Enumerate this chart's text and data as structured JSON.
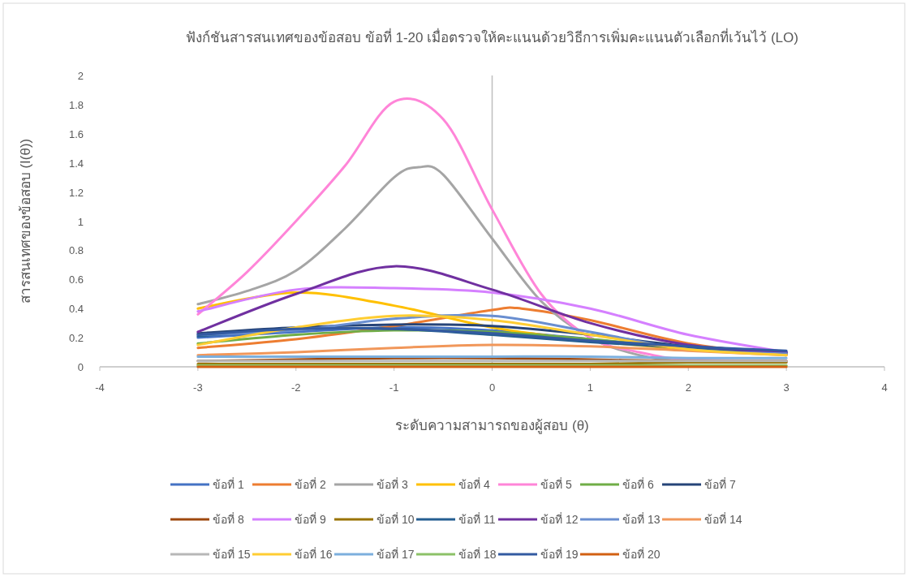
{
  "chart_data": {
    "type": "line",
    "title": "ฟังก์ชันสารสนเทศของข้อสอบ ข้อที่ 1-20 เมื่อตรวจให้คะแนนด้วยวิธีการเพิ่มคะแนนตัวเลือกที่เว้นไว้ (LO)",
    "xlabel": "ระดับความสามารถของผู้สอบ (θ)",
    "ylabel": "สารสนเทศของข้อสอบ (I(θ))",
    "x": [
      -3,
      -2,
      -1,
      0,
      1,
      2,
      3
    ],
    "xlim": [
      -4,
      4
    ],
    "xticks": [
      -4,
      -3,
      -2,
      -1,
      0,
      1,
      2,
      3,
      4
    ],
    "ylim": [
      0,
      2
    ],
    "yticks": [
      0,
      0.2,
      0.4,
      0.6,
      0.8,
      1,
      1.2,
      1.4,
      1.6,
      1.8,
      2
    ],
    "grid": false,
    "legend": "bottom",
    "marker": "none",
    "line_style": "solid",
    "ref_lines": [
      {
        "axis": "x",
        "value": 0,
        "color": "#bfbfbf"
      }
    ],
    "series": [
      {
        "name": "ข้อที่ 1",
        "color": "#4472c4",
        "values": [
          0.2,
          0.24,
          0.27,
          0.25,
          0.19,
          0.12,
          0.09
        ]
      },
      {
        "name": "ข้อที่ 2",
        "color": "#ed7d31",
        "x": [
          -3,
          -2,
          -1,
          0,
          0.3,
          1,
          2,
          3
        ],
        "values": [
          0.13,
          0.19,
          0.28,
          0.39,
          0.4,
          0.32,
          0.16,
          0.08
        ]
      },
      {
        "name": "ข้อที่ 3",
        "color": "#a5a5a5",
        "x": [
          -3,
          -2.5,
          -2,
          -1.5,
          -1,
          -0.75,
          -0.5,
          0,
          0.5,
          1,
          1.5,
          2,
          3
        ],
        "values": [
          0.43,
          0.52,
          0.66,
          0.95,
          1.3,
          1.37,
          1.32,
          0.88,
          0.45,
          0.2,
          0.08,
          0.04,
          0.03
        ]
      },
      {
        "name": "ข้อที่ 4",
        "color": "#ffc000",
        "values": [
          0.4,
          0.51,
          0.42,
          0.27,
          0.18,
          0.12,
          0.09
        ]
      },
      {
        "name": "ข้อที่ 5",
        "color": "#ff85d8",
        "x": [
          -3,
          -2.5,
          -2,
          -1.5,
          -1,
          -0.5,
          0,
          0.5,
          1,
          1.5,
          2,
          3
        ],
        "values": [
          0.36,
          0.65,
          1.0,
          1.38,
          1.82,
          1.7,
          1.08,
          0.5,
          0.2,
          0.1,
          0.05,
          0.04
        ]
      },
      {
        "name": "ข้อที่ 6",
        "color": "#70ad47",
        "values": [
          0.16,
          0.22,
          0.25,
          0.24,
          0.19,
          0.13,
          0.09
        ]
      },
      {
        "name": "ข้อที่ 7",
        "color": "#264478",
        "values": [
          0.23,
          0.27,
          0.29,
          0.28,
          0.22,
          0.14,
          0.1
        ]
      },
      {
        "name": "ข้อที่ 8",
        "color": "#9e480e",
        "values": [
          0.04,
          0.05,
          0.06,
          0.06,
          0.05,
          0.04,
          0.04
        ]
      },
      {
        "name": "ข้อที่ 9",
        "color": "#d580ff",
        "values": [
          0.38,
          0.53,
          0.54,
          0.51,
          0.4,
          0.22,
          0.1
        ]
      },
      {
        "name": "ข้อที่ 10",
        "color": "#997300",
        "values": [
          0.02,
          0.02,
          0.02,
          0.02,
          0.02,
          0.03,
          0.03
        ]
      },
      {
        "name": "ข้อที่ 11",
        "color": "#255e91",
        "values": [
          0.21,
          0.26,
          0.26,
          0.22,
          0.17,
          0.13,
          0.1
        ]
      },
      {
        "name": "ข้อที่ 12",
        "color": "#7030a0",
        "values": [
          0.24,
          0.5,
          0.69,
          0.53,
          0.3,
          0.15,
          0.1
        ]
      },
      {
        "name": "ข้อที่ 13",
        "color": "#698ed0",
        "values": [
          0.22,
          0.25,
          0.33,
          0.35,
          0.24,
          0.12,
          0.09
        ]
      },
      {
        "name": "ข้อที่ 14",
        "color": "#f1975a",
        "values": [
          0.08,
          0.1,
          0.13,
          0.15,
          0.14,
          0.11,
          0.08
        ]
      },
      {
        "name": "ข้อที่ 15",
        "color": "#b7b7b7",
        "values": [
          0.04,
          0.04,
          0.04,
          0.04,
          0.04,
          0.04,
          0.04
        ]
      },
      {
        "name": "ข้อที่ 16",
        "color": "#ffcd33",
        "values": [
          0.15,
          0.27,
          0.35,
          0.32,
          0.22,
          0.12,
          0.08
        ]
      },
      {
        "name": "ข้อที่ 17",
        "color": "#7cafdd",
        "values": [
          0.07,
          0.07,
          0.07,
          0.07,
          0.07,
          0.06,
          0.06
        ]
      },
      {
        "name": "ข้อที่ 18",
        "color": "#8cc168",
        "values": [
          0.01,
          0.01,
          0.01,
          0.01,
          0.01,
          0.01,
          0.01
        ]
      },
      {
        "name": "ข้อที่ 19",
        "color": "#335aa1",
        "values": [
          0.22,
          0.26,
          0.26,
          0.23,
          0.18,
          0.14,
          0.11
        ]
      },
      {
        "name": "ข้อที่ 20",
        "color": "#d26012",
        "values": [
          0,
          0,
          0,
          0,
          0,
          0,
          0
        ]
      }
    ]
  }
}
